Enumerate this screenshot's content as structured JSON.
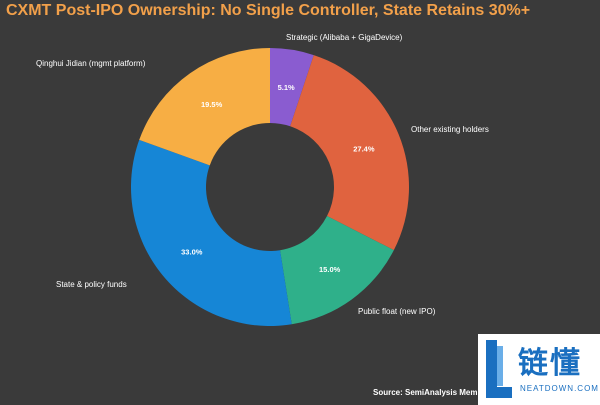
{
  "title": "CXMT Post-IPO Ownership: No Single Controller, State Retains 30%+",
  "source": "Source: SemiAnalysis Mem",
  "watermark": {
    "cn": "链懂",
    "en": "NEATDOWN.COM"
  },
  "chart_data": {
    "type": "pie",
    "style": "donut",
    "title": "CXMT Post-IPO Ownership: No Single Controller, State Retains 30%+",
    "categories": [
      "Strategic (Alibaba + GigaDevice)",
      "Other existing holders",
      "Public float (new IPO)",
      "State & policy funds",
      "Qinghui Jidian (mgmt platform)"
    ],
    "values": [
      5.1,
      27.4,
      15.0,
      33.0,
      19.5
    ],
    "data_labels": [
      "5.1%",
      "27.4%",
      "15.0%",
      "33.0%",
      "19.5%"
    ],
    "colors": [
      "#8a5cd0",
      "#e0633f",
      "#2fb08a",
      "#1686d6",
      "#f7ae44"
    ],
    "start": "12 o'clock",
    "direction": "clockwise",
    "legend": "none"
  }
}
